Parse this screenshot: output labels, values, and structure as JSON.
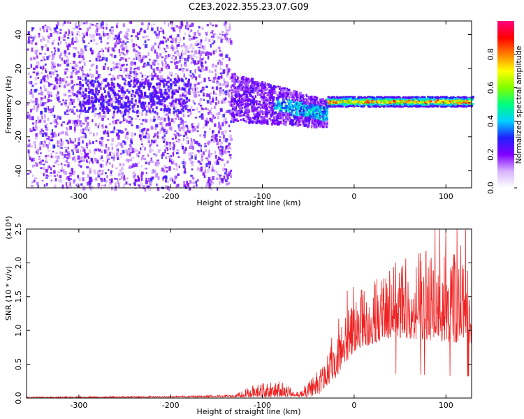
{
  "title": "C2E3.2022.355.23.07.G09",
  "chart_data": [
    {
      "type": "heatmap",
      "xlabel": "Height of straight line (km)",
      "ylabel": "Frequency (Hz)",
      "xlim": [
        -357,
        128
      ],
      "ylim": [
        -50,
        48
      ],
      "x_ticks": [
        -300,
        -200,
        -100,
        0,
        100
      ],
      "y_ticks": [
        -40,
        -20,
        0,
        20,
        40
      ],
      "colorbar": {
        "label": "Normalized spectral amplitude",
        "range": [
          0,
          1
        ],
        "ticks": [
          0.0,
          0.2,
          0.4,
          0.6,
          0.8
        ],
        "tick_labels": [
          "0.0",
          "0.2",
          "0.4",
          "0.6",
          "0.8"
        ],
        "colors": [
          "#ffffff",
          "#d7b3ff",
          "#8000ff",
          "#2020ff",
          "#00d0ff",
          "#00ff80",
          "#80ff00",
          "#ffff00",
          "#ff8000",
          "#ff0000",
          "#ff0080"
        ]
      },
      "regions": [
        {
          "x_range": [
            -357,
            -135
          ],
          "freq_range": [
            -50,
            48
          ],
          "amplitude": "low",
          "description_level": 0.15
        },
        {
          "x_range": [
            -135,
            -30
          ],
          "freq_center_start": 4,
          "freq_center_end": -6,
          "amplitude": "medium",
          "description_level": 0.35
        },
        {
          "x_range": [
            -30,
            128
          ],
          "freq_center": 1,
          "freq_halfwidth": 3,
          "amplitude": "high",
          "description_level": 0.8
        }
      ]
    },
    {
      "type": "line",
      "xlabel": "Height of straight line (km)",
      "ylabel": "SNR (10 * v/v)",
      "y_multiplier": "(x10⁴)",
      "xlim": [
        -357,
        128
      ],
      "ylim": [
        0,
        2.5
      ],
      "x_ticks": [
        -300,
        -200,
        -100,
        0,
        100
      ],
      "y_ticks": [
        0.0,
        0.5,
        1.0,
        1.5,
        2.0,
        2.5
      ],
      "y_tick_labels": [
        "0.0",
        "0.5",
        "1.0",
        "1.5",
        "2.0",
        "2.5"
      ],
      "color": "#ee2222",
      "envelope": [
        {
          "x": -357,
          "y": 0.02
        },
        {
          "x": -200,
          "y": 0.03
        },
        {
          "x": -130,
          "y": 0.05
        },
        {
          "x": -110,
          "y": 0.2
        },
        {
          "x": -80,
          "y": 0.25
        },
        {
          "x": -60,
          "y": 0.08
        },
        {
          "x": -40,
          "y": 0.4
        },
        {
          "x": -20,
          "y": 0.9
        },
        {
          "x": 0,
          "y": 1.5
        },
        {
          "x": 40,
          "y": 2.0
        },
        {
          "x": 80,
          "y": 2.2
        },
        {
          "x": 128,
          "y": 2.1
        }
      ],
      "baseline": [
        {
          "x": -357,
          "y": 0.0
        },
        {
          "x": -40,
          "y": 0.02
        },
        {
          "x": -20,
          "y": 0.3
        },
        {
          "x": 0,
          "y": 0.7
        },
        {
          "x": 40,
          "y": 0.9
        },
        {
          "x": 128,
          "y": 0.8
        }
      ]
    }
  ]
}
